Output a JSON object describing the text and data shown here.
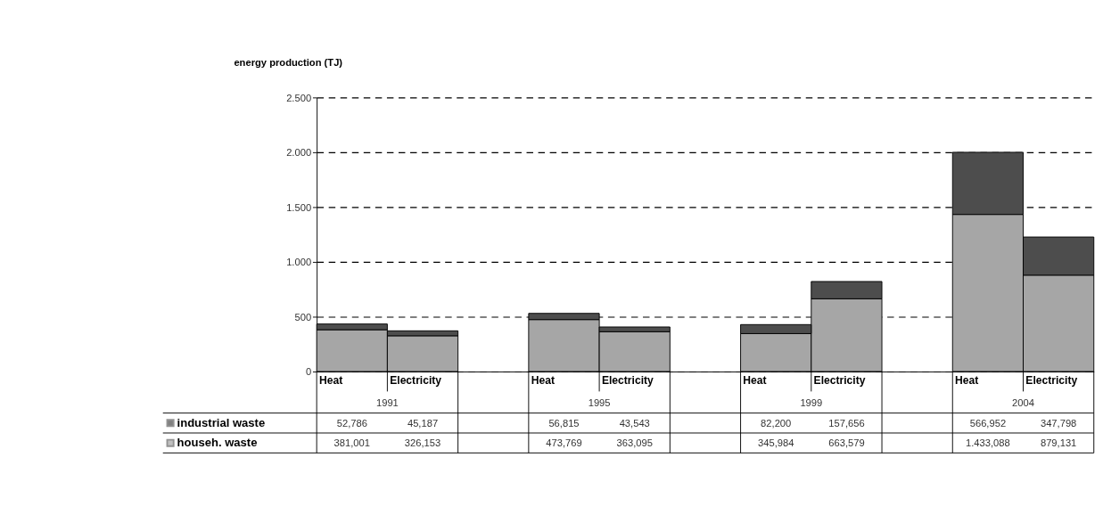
{
  "chart_data": {
    "type": "bar",
    "stacked": true,
    "ylabel": "energy production (TJ)",
    "categories": [
      "Heat",
      "Electricity",
      null,
      "Heat",
      "Electricity",
      null,
      "Heat",
      "Electricity",
      null,
      "Heat",
      "Electricity"
    ],
    "series": [
      {
        "name": "househ. waste",
        "color": "#a6a6a6",
        "values": [
          381.001,
          326.153,
          null,
          473.769,
          363.095,
          null,
          345.984,
          663.579,
          null,
          1433.088,
          879.131
        ],
        "value_labels": [
          "381,001",
          "326,153",
          null,
          "473,769",
          "363,095",
          null,
          "345,984",
          "663,579",
          null,
          "1.433,088",
          "879,131"
        ]
      },
      {
        "name": "industrial waste",
        "color": "#4d4d4d",
        "values": [
          52.786,
          45.187,
          null,
          56.815,
          43.543,
          null,
          82.2,
          157.656,
          null,
          566.952,
          347.798
        ],
        "value_labels": [
          "52,786",
          "45,187",
          null,
          "56,815",
          "43,543",
          null,
          "82,200",
          "157,656",
          null,
          "566,952",
          "347,798"
        ]
      }
    ],
    "annotations": [
      "1991",
      "1995",
      "1999",
      "2004"
    ],
    "ylim": [
      0,
      2500
    ],
    "yticks": [
      0,
      500,
      {
        "value": 1000,
        "label": "1.000"
      },
      {
        "value": 1500,
        "label": "1.500"
      },
      {
        "value": 2000,
        "label": "2.000"
      },
      {
        "value": 2500,
        "label": "2.500"
      }
    ],
    "grid": "y",
    "legend": "bottom left"
  }
}
